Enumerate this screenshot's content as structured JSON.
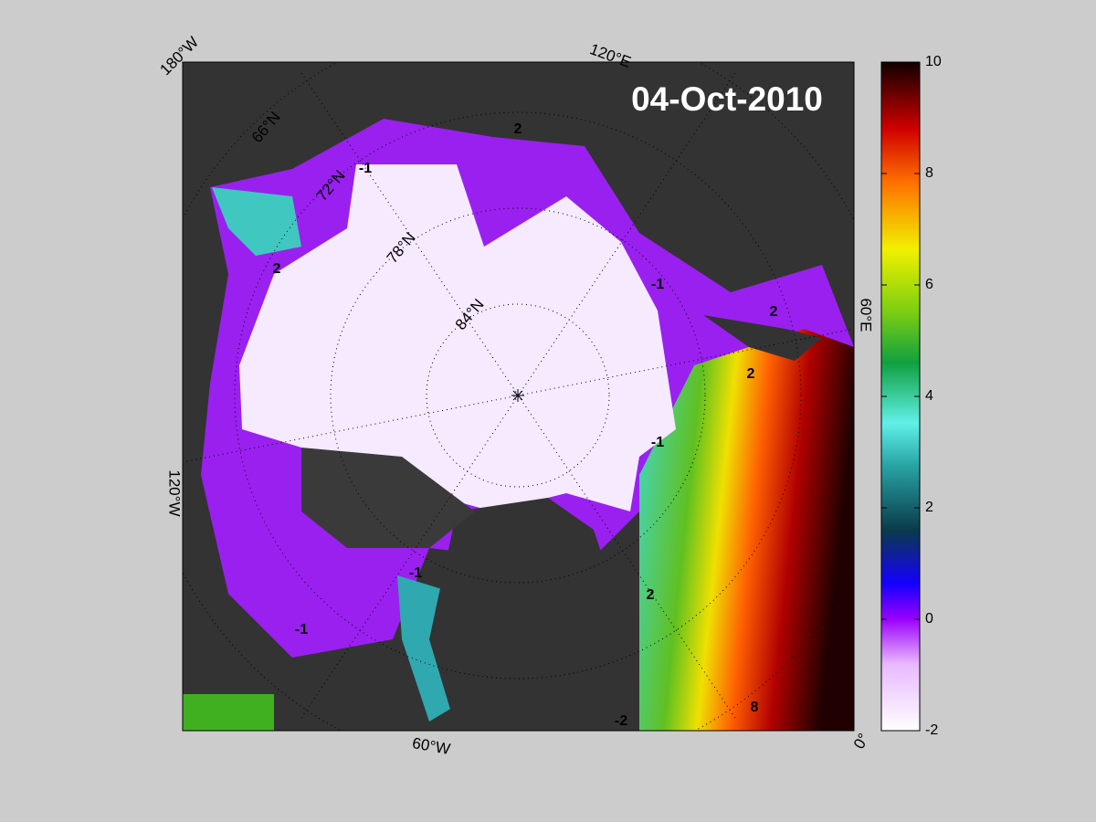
{
  "date_label": "04-Oct-2010",
  "longitude_labels": [
    "180°W",
    "120°E",
    "60°E",
    "0°",
    "60°W",
    "120°W"
  ],
  "latitude_labels": [
    "66°N",
    "72°N",
    "78°N",
    "84°N"
  ],
  "contour_labels": [
    "-1",
    "2",
    "2",
    "-1",
    "2",
    "2",
    "-1",
    "2",
    "8",
    "-1",
    "-1",
    "-2"
  ],
  "colorbar": {
    "lim": [
      -2,
      10
    ],
    "ticks": [
      -2,
      0,
      2,
      4,
      6,
      8,
      10
    ]
  }
}
